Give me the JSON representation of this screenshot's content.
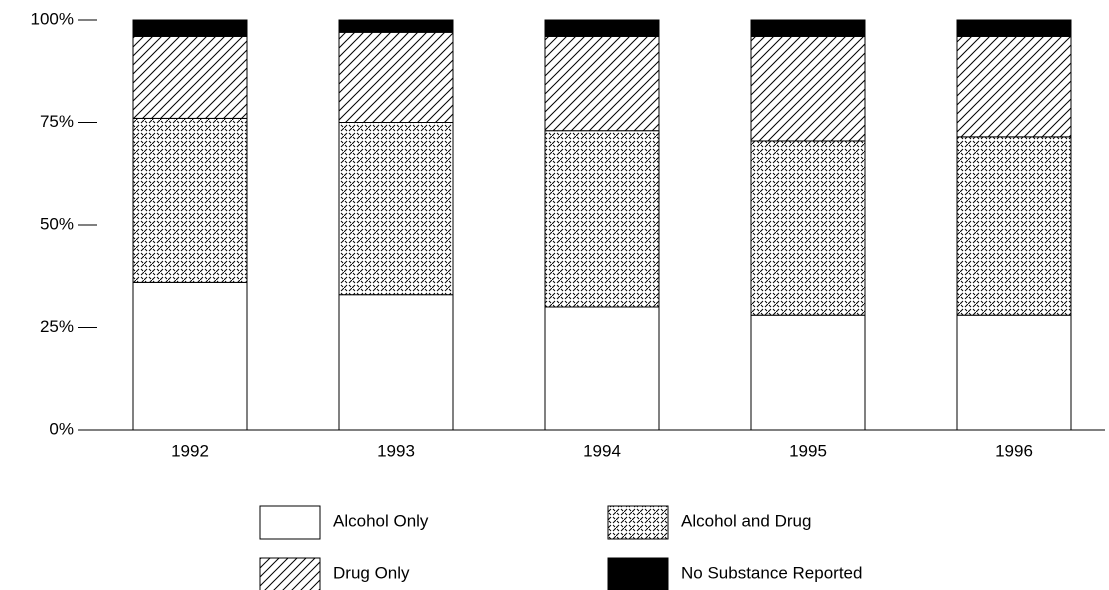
{
  "chart_data": {
    "type": "stacked_bar",
    "categories": [
      "1992",
      "1993",
      "1994",
      "1995",
      "1996"
    ],
    "series": [
      {
        "name": "Alcohol Only",
        "color": "#ffffff",
        "pattern": "none",
        "values": [
          36,
          33,
          30,
          28,
          28
        ]
      },
      {
        "name": "Alcohol and Drug",
        "color": "#000000",
        "pattern": "crosshatch",
        "values": [
          40,
          42,
          43,
          42.5,
          43.5
        ]
      },
      {
        "name": "Drug Only",
        "color": "#000000",
        "pattern": "diagonal",
        "values": [
          20,
          22,
          23,
          25.5,
          24.5
        ]
      },
      {
        "name": "No Substance Reported",
        "color": "#000000",
        "pattern": "solid",
        "values": [
          4,
          3,
          4,
          4,
          4
        ]
      }
    ],
    "ylim": [
      0,
      100
    ],
    "yticks": [
      {
        "value": 0,
        "label": "0%"
      },
      {
        "value": 25,
        "label": "25%"
      },
      {
        "value": 50,
        "label": "50%"
      },
      {
        "value": 75,
        "label": "75%"
      },
      {
        "value": 100,
        "label": "100%"
      }
    ],
    "grid": false,
    "legend": "bottom"
  }
}
